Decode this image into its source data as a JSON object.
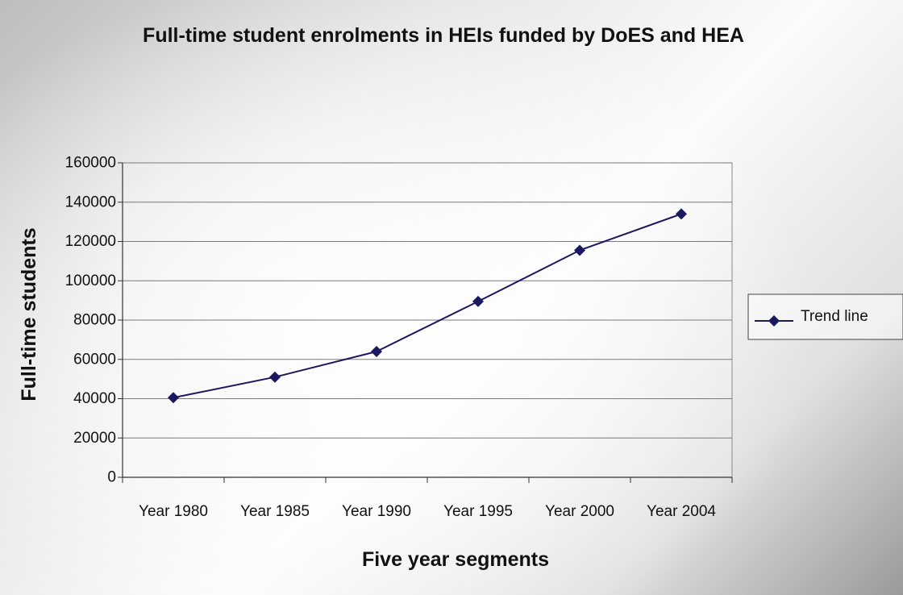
{
  "chart_data": {
    "type": "line",
    "title": "Full-time student enrolments in HEIs funded by DoES and HEA",
    "xlabel": "Five year segments",
    "ylabel": "Full-time students",
    "categories": [
      "Year 1980",
      "Year 1985",
      "Year 1990",
      "Year 1995",
      "Year 2000",
      "Year 2004"
    ],
    "series": [
      {
        "name": "Trend line",
        "values": [
          40500,
          51000,
          64000,
          89500,
          115500,
          134000
        ]
      }
    ],
    "ylim": [
      0,
      160000
    ],
    "yticks": [
      "0",
      "20000",
      "40000",
      "60000",
      "80000",
      "100000",
      "120000",
      "140000",
      "160000"
    ],
    "grid": "horizontal",
    "legend": "right",
    "colors": {
      "series": "#1a1860",
      "grid": "#7a7a7a",
      "axis": "#333333"
    }
  }
}
